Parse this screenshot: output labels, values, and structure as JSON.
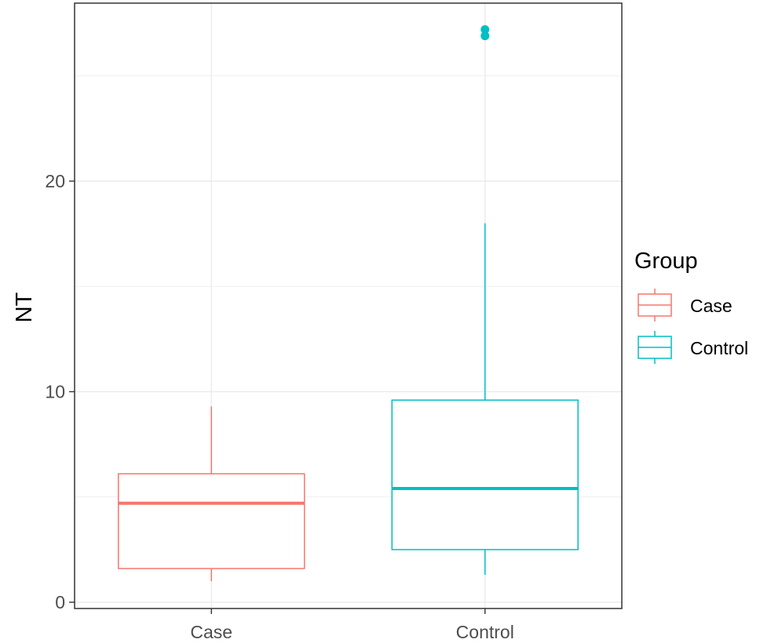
{
  "chart_data": {
    "type": "boxplot",
    "ylabel": "NT",
    "xlabel": "",
    "ylim": [
      0,
      28
    ],
    "yticks": [
      0,
      10,
      20
    ],
    "grid": true,
    "categories": [
      "Case",
      "Control"
    ],
    "boxes": [
      {
        "category": "Case",
        "min": 1.0,
        "q1": 1.6,
        "median": 4.7,
        "q3": 6.1,
        "max": 9.3,
        "outliers": [],
        "color": "#F8766D"
      },
      {
        "category": "Control",
        "min": 1.3,
        "q1": 2.5,
        "median": 5.4,
        "q3": 9.6,
        "max": 18.0,
        "outliers": [
          26.9,
          27.2
        ],
        "color": "#00BFC4"
      }
    ],
    "legend": {
      "title": "Group",
      "position": "right",
      "entries": [
        {
          "label": "Case",
          "color": "#F8766D"
        },
        {
          "label": "Control",
          "color": "#00BFC4"
        }
      ]
    }
  }
}
